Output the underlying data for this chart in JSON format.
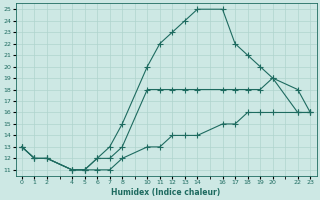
{
  "xlabel": "Humidex (Indice chaleur)",
  "bg_color": "#cde8e4",
  "grid_color": "#b0d4ce",
  "line_color": "#1e6b60",
  "ylim": [
    11,
    25
  ],
  "xlim": [
    0,
    23
  ],
  "yticks": [
    11,
    12,
    13,
    14,
    15,
    16,
    17,
    18,
    19,
    20,
    21,
    22,
    23,
    24,
    25
  ],
  "xtick_positions": [
    0,
    1,
    2,
    4,
    5,
    6,
    7,
    8,
    10,
    11,
    12,
    13,
    14,
    16,
    17,
    18,
    19,
    20,
    22,
    23
  ],
  "xtick_labels": [
    "0",
    "1",
    "2",
    "4",
    "5",
    "6",
    "7",
    "8",
    "10",
    "11",
    "12",
    "13",
    "14",
    "16",
    "17",
    "18",
    "19",
    "20",
    "22",
    "23"
  ],
  "line1_x": [
    0,
    1,
    2,
    4,
    5,
    6,
    7,
    8,
    10,
    11,
    12,
    13,
    14,
    16,
    17,
    18,
    19,
    20,
    22,
    23
  ],
  "line1_y": [
    13,
    12,
    12,
    11,
    11,
    12,
    13,
    15,
    20,
    22,
    23,
    24,
    25,
    25,
    22,
    21,
    20,
    19,
    16,
    16
  ],
  "line2_x": [
    0,
    1,
    2,
    4,
    5,
    6,
    7,
    8,
    10,
    11,
    12,
    13,
    14,
    16,
    17,
    18,
    19,
    20,
    22,
    23
  ],
  "line2_y": [
    13,
    12,
    12,
    11,
    11,
    12,
    12,
    13,
    18,
    18,
    18,
    18,
    18,
    18,
    18,
    18,
    18,
    19,
    18,
    16
  ],
  "line3_x": [
    0,
    1,
    2,
    4,
    5,
    6,
    7,
    8,
    10,
    11,
    12,
    13,
    14,
    16,
    17,
    18,
    19,
    20,
    22,
    23
  ],
  "line3_y": [
    13,
    12,
    12,
    11,
    11,
    11,
    11,
    12,
    13,
    13,
    14,
    14,
    14,
    15,
    15,
    16,
    16,
    16,
    16,
    16
  ]
}
